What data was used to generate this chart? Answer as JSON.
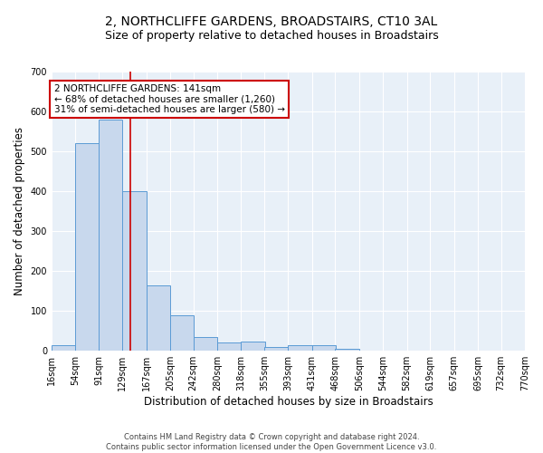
{
  "title": "2, NORTHCLIFFE GARDENS, BROADSTAIRS, CT10 3AL",
  "subtitle": "Size of property relative to detached houses in Broadstairs",
  "xlabel": "Distribution of detached houses by size in Broadstairs",
  "ylabel": "Number of detached properties",
  "bar_left_edges": [
    16,
    54,
    91,
    129,
    167,
    205,
    242,
    280,
    318,
    355,
    393,
    431,
    468,
    506,
    544,
    582,
    619,
    657,
    695,
    732
  ],
  "bar_heights": [
    15,
    520,
    580,
    400,
    163,
    88,
    35,
    22,
    23,
    10,
    13,
    14,
    6,
    0,
    0,
    0,
    0,
    0,
    0,
    0
  ],
  "bin_width": 38,
  "bar_color": "#c8d8ed",
  "bar_edge_color": "#5b9bd5",
  "red_line_x": 141,
  "ylim": [
    0,
    700
  ],
  "yticks": [
    0,
    100,
    200,
    300,
    400,
    500,
    600,
    700
  ],
  "xtick_labels": [
    "16sqm",
    "54sqm",
    "91sqm",
    "129sqm",
    "167sqm",
    "205sqm",
    "242sqm",
    "280sqm",
    "318sqm",
    "355sqm",
    "393sqm",
    "431sqm",
    "468sqm",
    "506sqm",
    "544sqm",
    "582sqm",
    "619sqm",
    "657sqm",
    "695sqm",
    "732sqm",
    "770sqm"
  ],
  "annotation_text": "2 NORTHCLIFFE GARDENS: 141sqm\n← 68% of detached houses are smaller (1,260)\n31% of semi-detached houses are larger (580) →",
  "annotation_box_color": "#ffffff",
  "annotation_box_edge_color": "#cc0000",
  "footer_text": "Contains HM Land Registry data © Crown copyright and database right 2024.\nContains public sector information licensed under the Open Government Licence v3.0.",
  "fig_bg_color": "#ffffff",
  "plot_bg_color": "#e8f0f8",
  "grid_color": "#ffffff",
  "title_fontsize": 10,
  "subtitle_fontsize": 9,
  "axis_label_fontsize": 8.5,
  "tick_fontsize": 7,
  "annotation_fontsize": 7.5,
  "footer_fontsize": 6
}
